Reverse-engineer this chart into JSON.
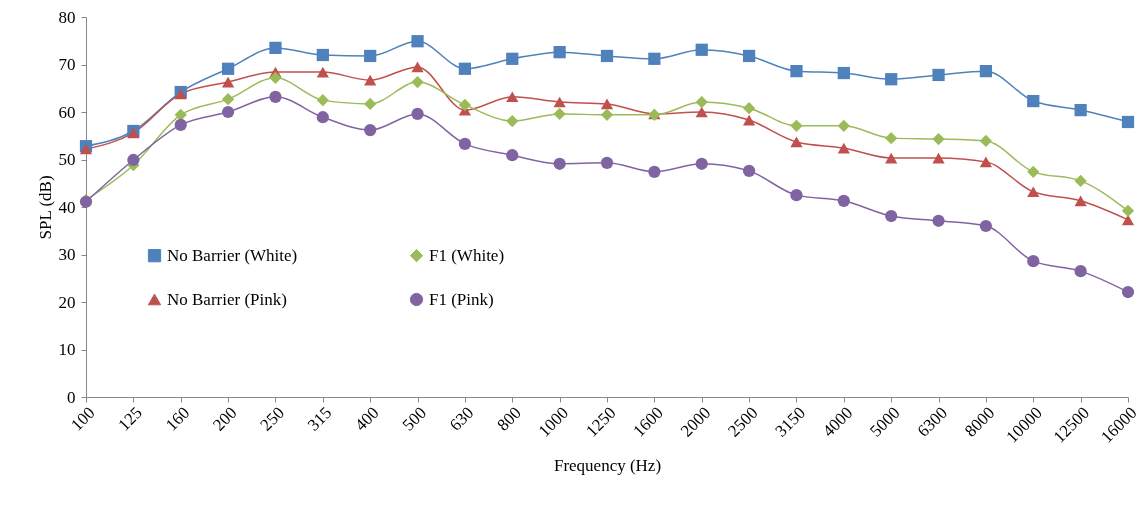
{
  "chart_data": {
    "type": "line",
    "xlabel": "Frequency (Hz)",
    "ylabel": "SPL (dB)",
    "categories": [
      "100",
      "125",
      "160",
      "200",
      "250",
      "315",
      "400",
      "500",
      "630",
      "800",
      "1000",
      "1250",
      "1600",
      "2000",
      "2500",
      "3150",
      "4000",
      "5000",
      "6300",
      "8000",
      "10000",
      "12500",
      "16000"
    ],
    "ylim": [
      0,
      80
    ],
    "yticks": [
      0,
      10,
      20,
      30,
      40,
      50,
      60,
      70,
      80
    ],
    "legend": "left",
    "series": [
      {
        "name": "No Barrier (White)",
        "color": "#4f81bd",
        "marker": "square",
        "values": [
          52.8,
          56.0,
          64.2,
          69.1,
          73.5,
          72.0,
          71.8,
          74.9,
          69.1,
          71.2,
          72.6,
          71.8,
          71.2,
          73.1,
          71.8,
          68.6,
          68.2,
          66.9,
          67.8,
          68.6,
          62.3,
          60.4,
          57.9
        ]
      },
      {
        "name": "No Barrier (Pink)",
        "color": "#c0504d",
        "marker": "triangle",
        "values": [
          52.2,
          55.6,
          63.8,
          66.3,
          68.4,
          68.4,
          66.7,
          69.5,
          60.4,
          63.2,
          62.1,
          61.7,
          59.6,
          60.0,
          58.3,
          53.7,
          52.4,
          50.3,
          50.3,
          49.5,
          43.2,
          41.3,
          37.3
        ]
      },
      {
        "name": "F1 (White)",
        "color": "#9bbb59",
        "marker": "diamond",
        "values": [
          41.5,
          48.8,
          59.4,
          62.7,
          67.2,
          62.5,
          61.7,
          66.3,
          61.5,
          58.1,
          59.6,
          59.4,
          59.4,
          62.1,
          60.8,
          57.1,
          57.1,
          54.5,
          54.3,
          53.9,
          47.4,
          45.5,
          39.2
        ]
      },
      {
        "name": "F1 (Pink)",
        "color": "#8064a2",
        "marker": "circle",
        "values": [
          41.1,
          49.9,
          57.3,
          60.0,
          63.2,
          58.9,
          56.2,
          59.6,
          53.3,
          50.9,
          49.1,
          49.3,
          47.4,
          49.1,
          47.6,
          42.5,
          41.3,
          38.1,
          37.1,
          36.0,
          28.6,
          26.5,
          22.1
        ]
      }
    ]
  }
}
